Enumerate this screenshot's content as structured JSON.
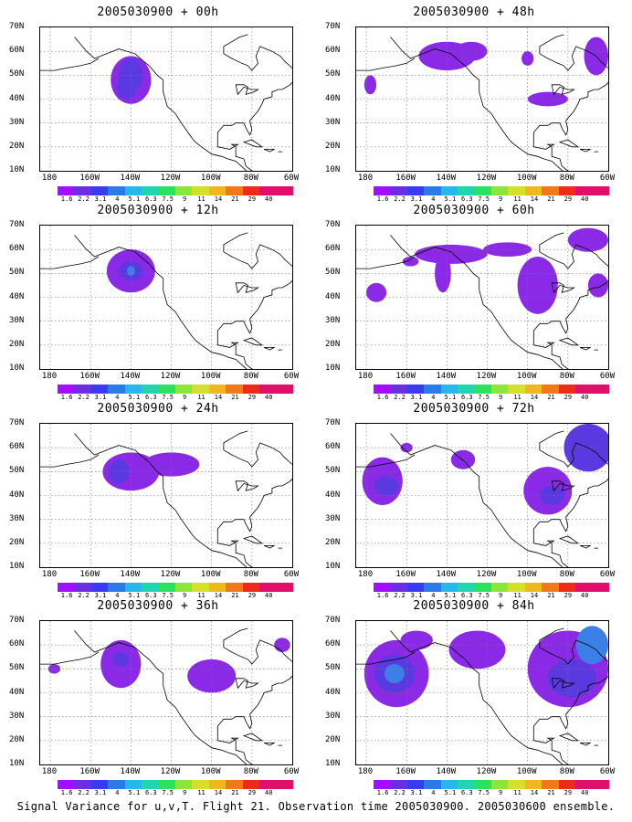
{
  "panels": [
    {
      "title": "2005030900 + 00h",
      "blobs": [
        {
          "lon": -140,
          "lat": 48,
          "rx": 10,
          "ry": 10,
          "level": 1
        },
        {
          "lon": -140,
          "lat": 50,
          "rx": 6,
          "ry": 7,
          "level": 2
        },
        {
          "lon": -142,
          "lat": 45,
          "rx": 5,
          "ry": 5,
          "level": 2
        }
      ]
    },
    {
      "title": "2005030900 + 48h",
      "blobs": [
        {
          "lon": -140,
          "lat": 58,
          "rx": 14,
          "ry": 6,
          "level": 1
        },
        {
          "lon": -128,
          "lat": 60,
          "rx": 8,
          "ry": 4,
          "level": 1
        },
        {
          "lon": -100,
          "lat": 57,
          "rx": 3,
          "ry": 3,
          "level": 1
        },
        {
          "lon": -90,
          "lat": 40,
          "rx": 10,
          "ry": 3,
          "level": 1
        },
        {
          "lon": -66,
          "lat": 58,
          "rx": 6,
          "ry": 8,
          "level": 1
        },
        {
          "lon": -178,
          "lat": 46,
          "rx": 3,
          "ry": 4,
          "level": 1
        }
      ]
    },
    {
      "title": "2005030900 + 12h",
      "blobs": [
        {
          "lon": -140,
          "lat": 51,
          "rx": 12,
          "ry": 9,
          "level": 1
        },
        {
          "lon": -140,
          "lat": 51,
          "rx": 6,
          "ry": 4,
          "level": 2
        },
        {
          "lon": -140,
          "lat": 51,
          "rx": 2,
          "ry": 2,
          "level": 3
        }
      ]
    },
    {
      "title": "2005030900 + 60h",
      "blobs": [
        {
          "lon": -138,
          "lat": 58,
          "rx": 18,
          "ry": 4,
          "level": 1
        },
        {
          "lon": -142,
          "lat": 50,
          "rx": 4,
          "ry": 8,
          "level": 1
        },
        {
          "lon": -110,
          "lat": 60,
          "rx": 12,
          "ry": 3,
          "level": 1
        },
        {
          "lon": -95,
          "lat": 45,
          "rx": 10,
          "ry": 12,
          "level": 1
        },
        {
          "lon": -175,
          "lat": 42,
          "rx": 5,
          "ry": 4,
          "level": 1
        },
        {
          "lon": -158,
          "lat": 55,
          "rx": 4,
          "ry": 2,
          "level": 1
        },
        {
          "lon": -65,
          "lat": 45,
          "rx": 5,
          "ry": 5,
          "level": 1
        },
        {
          "lon": -70,
          "lat": 64,
          "rx": 10,
          "ry": 5,
          "level": 1
        }
      ]
    },
    {
      "title": "2005030900 + 24h",
      "blobs": [
        {
          "lon": -140,
          "lat": 50,
          "rx": 14,
          "ry": 8,
          "level": 1
        },
        {
          "lon": -120,
          "lat": 53,
          "rx": 14,
          "ry": 5,
          "level": 1
        },
        {
          "lon": -146,
          "lat": 50,
          "rx": 5,
          "ry": 5,
          "level": 2
        }
      ]
    },
    {
      "title": "2005030900 + 72h",
      "blobs": [
        {
          "lon": -172,
          "lat": 46,
          "rx": 10,
          "ry": 10,
          "level": 1
        },
        {
          "lon": -170,
          "lat": 44,
          "rx": 6,
          "ry": 4,
          "level": 2
        },
        {
          "lon": -132,
          "lat": 55,
          "rx": 6,
          "ry": 4,
          "level": 1
        },
        {
          "lon": -90,
          "lat": 42,
          "rx": 12,
          "ry": 10,
          "level": 1
        },
        {
          "lon": -88,
          "lat": 40,
          "rx": 6,
          "ry": 4,
          "level": 2
        },
        {
          "lon": -70,
          "lat": 60,
          "rx": 12,
          "ry": 10,
          "level": 2
        },
        {
          "lon": -160,
          "lat": 60,
          "rx": 3,
          "ry": 2,
          "level": 1
        }
      ]
    },
    {
      "title": "2005030900 + 36h",
      "blobs": [
        {
          "lon": -145,
          "lat": 52,
          "rx": 10,
          "ry": 10,
          "level": 1
        },
        {
          "lon": -145,
          "lat": 54,
          "rx": 4,
          "ry": 3,
          "level": 2
        },
        {
          "lon": -100,
          "lat": 47,
          "rx": 12,
          "ry": 7,
          "level": 1
        },
        {
          "lon": -65,
          "lat": 60,
          "rx": 4,
          "ry": 3,
          "level": 1
        },
        {
          "lon": -178,
          "lat": 50,
          "rx": 3,
          "ry": 2,
          "level": 1
        }
      ]
    },
    {
      "title": "2005030900 + 84h",
      "blobs": [
        {
          "lon": -165,
          "lat": 48,
          "rx": 16,
          "ry": 14,
          "level": 1
        },
        {
          "lon": -166,
          "lat": 48,
          "rx": 10,
          "ry": 8,
          "level": 2
        },
        {
          "lon": -166,
          "lat": 48,
          "rx": 5,
          "ry": 4,
          "level": 3
        },
        {
          "lon": -125,
          "lat": 58,
          "rx": 14,
          "ry": 8,
          "level": 1
        },
        {
          "lon": -80,
          "lat": 50,
          "rx": 20,
          "ry": 16,
          "level": 1
        },
        {
          "lon": -78,
          "lat": 46,
          "rx": 12,
          "ry": 8,
          "level": 2
        },
        {
          "lon": -68,
          "lat": 60,
          "rx": 8,
          "ry": 8,
          "level": 3
        },
        {
          "lon": -155,
          "lat": 62,
          "rx": 8,
          "ry": 4,
          "level": 1
        }
      ]
    }
  ],
  "lat_labels": [
    "70N",
    "60N",
    "50N",
    "40N",
    "30N",
    "20N",
    "10N"
  ],
  "lon_labels": [
    "180",
    "160W",
    "140W",
    "120W",
    "100W",
    "80W",
    "60W"
  ],
  "colorbar": {
    "labels": [
      "1.6",
      "2.2",
      "3.1",
      "4",
      "5.1",
      "6.3",
      "7.5",
      "9",
      "11",
      "14",
      "21",
      "29",
      "40"
    ],
    "colors": [
      "#a010ff",
      "#6b2ee0",
      "#3a3af0",
      "#2a7be8",
      "#26b8e8",
      "#1fd6b0",
      "#2ce060",
      "#8ce63a",
      "#d4e02a",
      "#f0b81f",
      "#f07a1a",
      "#ee2a1a",
      "#e0106a"
    ]
  },
  "level_colors": [
    "#8a2ae6",
    "#5a3ae0",
    "#3a80e8",
    "#38c4ec"
  ],
  "footer": "Signal Variance for u,v,T. Flight 21. Observation time 2005030900. 2005030600 ensemble."
}
